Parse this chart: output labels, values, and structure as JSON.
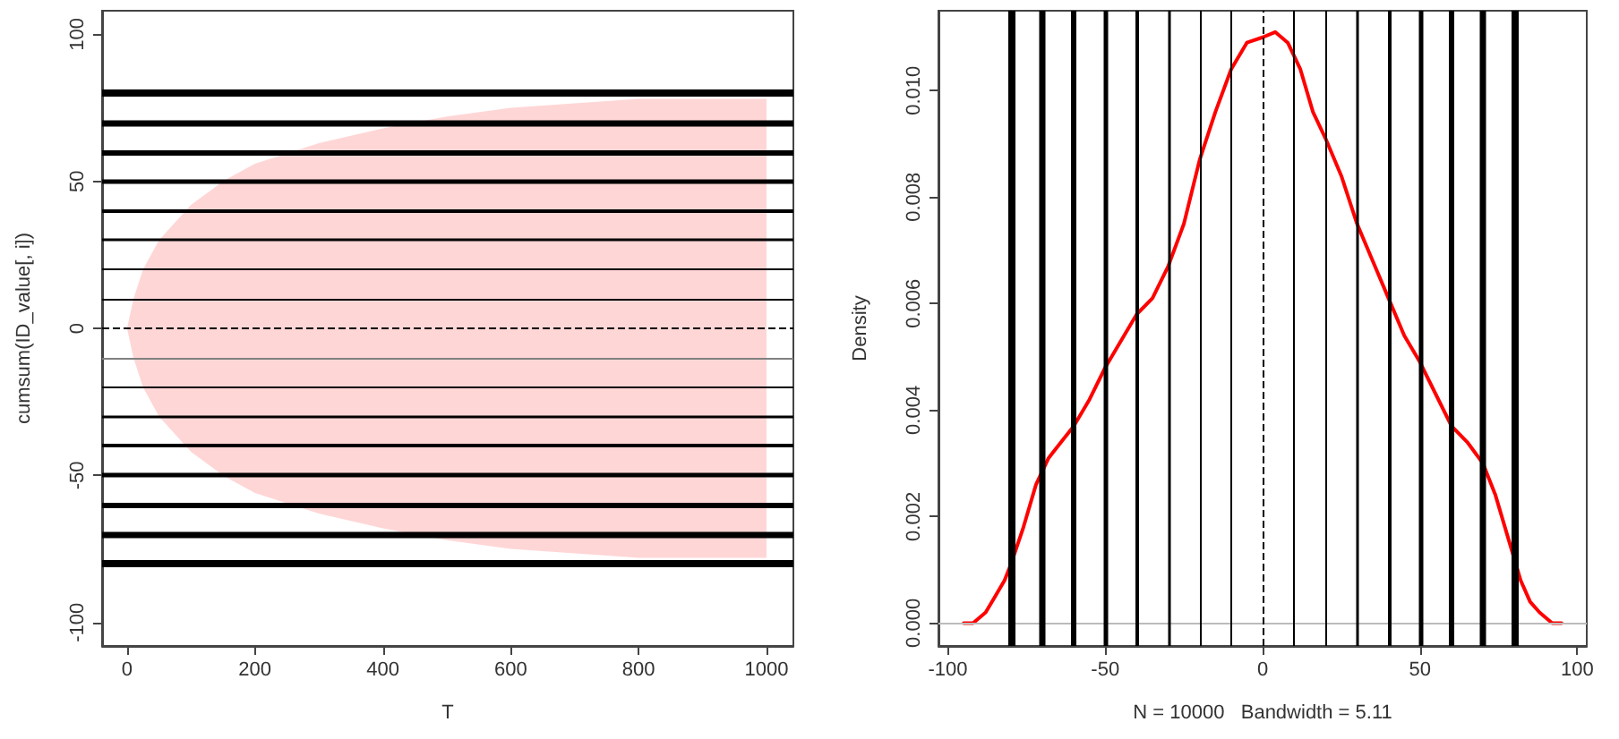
{
  "chart_data": [
    {
      "type": "line",
      "xlabel": "T",
      "ylabel": "cumsum(ID_value[, i])",
      "xlim": [
        -39,
        1042
      ],
      "ylim": [
        -108,
        108
      ],
      "xticks": [
        0,
        200,
        400,
        600,
        800,
        1000
      ],
      "yticks": [
        -100,
        -50,
        0,
        50,
        100
      ],
      "marker": "none",
      "series": [
        {
          "color": "#ffd6d6",
          "x": [
            0,
            10,
            25,
            50,
            100,
            150,
            200,
            300,
            400,
            500,
            600,
            800,
            1000
          ],
          "values": [
            null,
            null,
            null,
            null,
            null,
            null,
            null,
            null,
            null,
            null,
            null,
            null,
            null
          ],
          "lower": [
            0,
            -10,
            -20,
            -30,
            -42,
            -50,
            -56,
            -63,
            -68,
            -72,
            -75,
            -78,
            -78
          ],
          "upper": [
            0,
            10,
            20,
            30,
            42,
            50,
            56,
            63,
            68,
            72,
            75,
            78,
            78
          ]
        }
      ],
      "ref_lines": [
        {
          "axis": "y",
          "value": -80,
          "color": "#000000"
        },
        {
          "axis": "y",
          "value": -70,
          "color": "#000000"
        },
        {
          "axis": "y",
          "value": -60,
          "color": "#000000"
        },
        {
          "axis": "y",
          "value": -50,
          "color": "#000000"
        },
        {
          "axis": "y",
          "value": -40,
          "color": "#000000"
        },
        {
          "axis": "y",
          "value": -30,
          "color": "#000000"
        },
        {
          "axis": "y",
          "value": -20,
          "color": "#000000"
        },
        {
          "axis": "y",
          "value": -10,
          "color": "#808080"
        },
        {
          "axis": "y",
          "value": 0,
          "color": "#000000",
          "line_style": "dashed"
        },
        {
          "axis": "y",
          "value": 10,
          "color": "#000000"
        },
        {
          "axis": "y",
          "value": 20,
          "color": "#000000"
        },
        {
          "axis": "y",
          "value": 30,
          "color": "#000000"
        },
        {
          "axis": "y",
          "value": 40,
          "color": "#000000"
        },
        {
          "axis": "y",
          "value": 50,
          "color": "#000000"
        },
        {
          "axis": "y",
          "value": 60,
          "color": "#000000"
        },
        {
          "axis": "y",
          "value": 70,
          "color": "#000000"
        },
        {
          "axis": "y",
          "value": 80,
          "color": "#000000"
        }
      ]
    },
    {
      "type": "line",
      "xlabel": "N = 10000   Bandwidth = 5.11",
      "ylabel": "Density",
      "xlim": [
        -103,
        103
      ],
      "ylim": [
        -0.00043,
        0.0115
      ],
      "xticks": [
        -100,
        -50,
        0,
        50,
        100
      ],
      "yticks": [
        {
          "value": 0,
          "label": "0.000"
        },
        0.002,
        0.004,
        0.006,
        0.008,
        {
          "value": 0.01,
          "label": "0.010"
        }
      ],
      "marker": "none",
      "series": [
        {
          "color": "#ff0000",
          "x": [
            -95,
            -92,
            -88,
            -85,
            -82,
            -80,
            -76,
            -72,
            -68,
            -64,
            -60,
            -55,
            -50,
            -45,
            -40,
            -35,
            -30,
            -25,
            -20,
            -15,
            -10,
            -5,
            0,
            4,
            8,
            12,
            16,
            20,
            25,
            30,
            35,
            40,
            45,
            50,
            55,
            60,
            65,
            70,
            74,
            78,
            82,
            85,
            88,
            92,
            95
          ],
          "values": [
            0.0,
            0.0,
            0.0002,
            0.0005,
            0.0008,
            0.0011,
            0.0018,
            0.0026,
            0.0031,
            0.0034,
            0.0037,
            0.0042,
            0.0048,
            0.0053,
            0.0058,
            0.0061,
            0.0067,
            0.0075,
            0.0087,
            0.0096,
            0.0104,
            0.0109,
            0.011,
            0.0111,
            0.0109,
            0.0104,
            0.0096,
            0.0091,
            0.0084,
            0.0075,
            0.0068,
            0.0061,
            0.0054,
            0.0049,
            0.0043,
            0.0037,
            0.0034,
            0.003,
            0.0024,
            0.0016,
            0.0008,
            0.0004,
            0.0002,
            0.0,
            0.0
          ]
        }
      ],
      "ref_lines": [
        {
          "axis": "y",
          "value": 0,
          "color": "#bbbbbb"
        },
        {
          "axis": "x",
          "value": -80,
          "color": "#000000"
        },
        {
          "axis": "x",
          "value": -70,
          "color": "#000000"
        },
        {
          "axis": "x",
          "value": -60,
          "color": "#000000"
        },
        {
          "axis": "x",
          "value": -50,
          "color": "#000000"
        },
        {
          "axis": "x",
          "value": -40,
          "color": "#000000"
        },
        {
          "axis": "x",
          "value": -30,
          "color": "#000000"
        },
        {
          "axis": "x",
          "value": -20,
          "color": "#000000"
        },
        {
          "axis": "x",
          "value": -10,
          "color": "#000000"
        },
        {
          "axis": "x",
          "value": 0,
          "color": "#000000",
          "line_style": "dashed"
        },
        {
          "axis": "x",
          "value": 10,
          "color": "#000000"
        },
        {
          "axis": "x",
          "value": 20,
          "color": "#000000"
        },
        {
          "axis": "x",
          "value": 30,
          "color": "#000000"
        },
        {
          "axis": "x",
          "value": 40,
          "color": "#000000"
        },
        {
          "axis": "x",
          "value": 50,
          "color": "#000000"
        },
        {
          "axis": "x",
          "value": 60,
          "color": "#000000"
        },
        {
          "axis": "x",
          "value": 70,
          "color": "#000000"
        },
        {
          "axis": "x",
          "value": 80,
          "color": "#000000"
        }
      ]
    }
  ]
}
